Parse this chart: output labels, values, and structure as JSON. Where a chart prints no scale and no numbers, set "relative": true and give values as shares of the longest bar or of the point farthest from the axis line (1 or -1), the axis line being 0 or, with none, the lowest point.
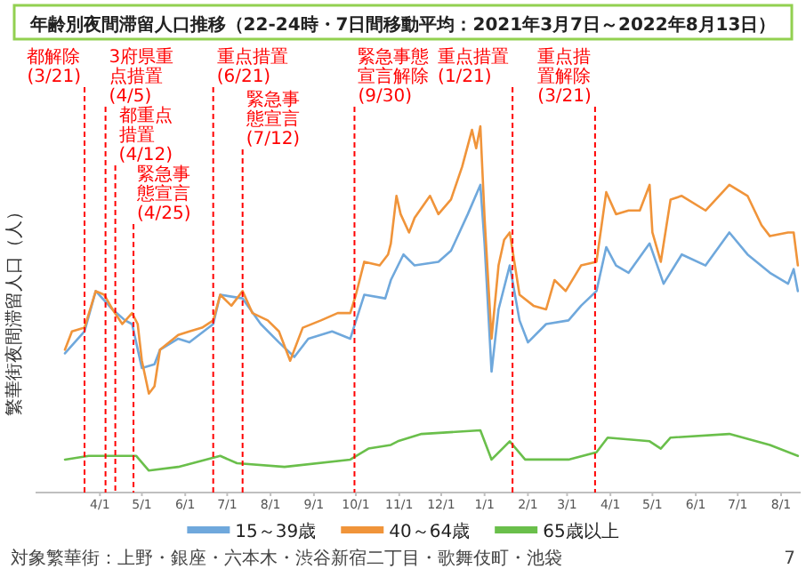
{
  "chart_data": {
    "type": "line",
    "title": "年齢別夜間滞留人口推移（22-24時・7日間移動平均：2021年3月7日～2022年8月13日）",
    "ylabel": "繁華街夜間滞留人口（人）",
    "relative": true,
    "xlim": [
      "2021-02-14",
      "2022-08-15"
    ],
    "tick_labels": "x",
    "xticks": [
      {
        "value": "2021-04-01",
        "label": "4/1"
      },
      {
        "value": "2021-05-01",
        "label": "5/1"
      },
      {
        "value": "2021-06-01",
        "label": "6/1"
      },
      {
        "value": "2021-07-01",
        "label": "7/1"
      },
      {
        "value": "2021-08-01",
        "label": "8/1"
      },
      {
        "value": "2021-09-01",
        "label": "9/1"
      },
      {
        "value": "2021-10-01",
        "label": "10/1"
      },
      {
        "value": "2021-11-01",
        "label": "11/1"
      },
      {
        "value": "2021-12-01",
        "label": "12/1"
      },
      {
        "value": "2022-01-01",
        "label": "1/1"
      },
      {
        "value": "2022-02-01",
        "label": "2/1"
      },
      {
        "value": "2022-03-01",
        "label": "3/1"
      },
      {
        "value": "2022-04-01",
        "label": "4/1"
      },
      {
        "value": "2022-05-01",
        "label": "5/1"
      },
      {
        "value": "2022-06-01",
        "label": "6/1"
      },
      {
        "value": "2022-07-01",
        "label": "7/1"
      },
      {
        "value": "2022-08-01",
        "label": "8/1"
      }
    ],
    "legend": "bottom",
    "annotations": [
      "対象繁華街：上野・銀座・六本木・渋谷新宿二丁目・歌舞伎町・池袋",
      "7"
    ],
    "ref_lines": [
      {
        "axis": "x",
        "value": "2021-03-21",
        "label": "都解除\n(3/21)",
        "color": "#ff0000",
        "line_style": "dashed"
      },
      {
        "axis": "x",
        "value": "2021-04-05",
        "label": "3府県重点措置\n(4/5)",
        "color": "#ff0000",
        "line_style": "dashed"
      },
      {
        "axis": "x",
        "value": "2021-04-12",
        "label": "都重点措置\n(4/12)",
        "color": "#ff0000",
        "line_style": "dashed"
      },
      {
        "axis": "x",
        "value": "2021-04-25",
        "label": "緊急事態宣言\n(4/25)",
        "color": "#ff0000",
        "line_style": "dashed"
      },
      {
        "axis": "x",
        "value": "2021-06-21",
        "label": "重点措置\n(6/21)",
        "color": "#ff0000",
        "line_style": "dashed"
      },
      {
        "axis": "x",
        "value": "2021-07-12",
        "label": "緊急事態宣言\n(7/12)",
        "color": "#ff0000",
        "line_style": "dashed"
      },
      {
        "axis": "x",
        "value": "2021-09-30",
        "label": "緊急事態宣言解除\n(9/30)",
        "color": "#ff0000",
        "line_style": "dashed"
      },
      {
        "axis": "x",
        "value": "2022-01-21",
        "label": "重点措置\n(1/21)",
        "color": "#ff0000",
        "line_style": "dashed"
      },
      {
        "axis": "x",
        "value": "2022-03-21",
        "label": "重点措置解除\n(3/21)",
        "color": "#ff0000",
        "line_style": "dashed"
      }
    ],
    "series": [
      {
        "name": "15～39歳",
        "color": "#6fa8dc",
        "x": [
          "2021-03-07",
          "2021-03-21",
          "2021-03-29",
          "2021-04-10",
          "2021-04-19",
          "2021-04-24",
          "2021-05-01",
          "2021-05-10",
          "2021-05-14",
          "2021-05-27",
          "2021-06-04",
          "2021-06-21",
          "2021-06-26",
          "2021-07-12",
          "2021-07-25",
          "2021-08-07",
          "2021-08-18",
          "2021-08-28",
          "2021-09-14",
          "2021-09-27",
          "2021-10-07",
          "2021-10-22",
          "2021-10-26",
          "2021-11-04",
          "2021-11-12",
          "2021-11-29",
          "2021-12-08",
          "2021-12-20",
          "2021-12-29",
          "2022-01-01",
          "2022-01-06",
          "2022-01-11",
          "2022-01-19",
          "2022-01-26",
          "2022-02-01",
          "2022-02-14",
          "2022-03-02",
          "2022-03-11",
          "2022-03-22",
          "2022-03-29",
          "2022-04-05",
          "2022-04-14",
          "2022-04-29",
          "2022-05-09",
          "2022-05-22",
          "2022-06-08",
          "2022-06-25",
          "2022-07-08",
          "2022-07-24",
          "2022-08-06",
          "2022-08-10",
          "2022-08-13"
        ],
        "values": [
          0.38,
          0.44,
          0.55,
          0.5,
          0.47,
          0.46,
          0.34,
          0.35,
          0.39,
          0.42,
          0.41,
          0.46,
          0.54,
          0.53,
          0.46,
          0.41,
          0.37,
          0.42,
          0.44,
          0.42,
          0.54,
          0.53,
          0.58,
          0.65,
          0.62,
          0.63,
          0.66,
          0.76,
          0.84,
          0.68,
          0.33,
          0.5,
          0.62,
          0.47,
          0.41,
          0.46,
          0.47,
          0.51,
          0.55,
          0.67,
          0.62,
          0.6,
          0.68,
          0.57,
          0.65,
          0.62,
          0.71,
          0.65,
          0.6,
          0.57,
          0.61,
          0.55
        ]
      },
      {
        "name": "40～64歳",
        "color": "#f0943a",
        "x": [
          "2021-03-07",
          "2021-03-12",
          "2021-03-21",
          "2021-03-29",
          "2021-04-04",
          "2021-04-10",
          "2021-04-17",
          "2021-04-24",
          "2021-04-28",
          "2021-05-01",
          "2021-05-06",
          "2021-05-10",
          "2021-05-14",
          "2021-05-27",
          "2021-06-04",
          "2021-06-13",
          "2021-06-21",
          "2021-06-26",
          "2021-07-04",
          "2021-07-12",
          "2021-07-19",
          "2021-07-30",
          "2021-08-07",
          "2021-08-15",
          "2021-08-24",
          "2021-09-06",
          "2021-09-18",
          "2021-09-27",
          "2021-10-01",
          "2021-10-07",
          "2021-10-18",
          "2021-10-24",
          "2021-10-26",
          "2021-10-30",
          "2021-11-02",
          "2021-11-08",
          "2021-11-12",
          "2021-11-23",
          "2021-11-29",
          "2021-12-08",
          "2021-12-16",
          "2021-12-23",
          "2021-12-26",
          "2021-12-29",
          "2022-01-01",
          "2022-01-06",
          "2022-01-11",
          "2022-01-15",
          "2022-01-19",
          "2022-01-26",
          "2022-02-05",
          "2022-02-14",
          "2022-02-20",
          "2022-02-28",
          "2022-03-11",
          "2022-03-22",
          "2022-03-29",
          "2022-04-05",
          "2022-04-14",
          "2022-04-22",
          "2022-04-29",
          "2022-05-01",
          "2022-05-07",
          "2022-05-14",
          "2022-05-22",
          "2022-06-08",
          "2022-06-25",
          "2022-07-08",
          "2022-07-18",
          "2022-07-24",
          "2022-08-06",
          "2022-08-10",
          "2022-08-13"
        ],
        "values": [
          0.39,
          0.44,
          0.45,
          0.55,
          0.54,
          0.5,
          0.46,
          0.49,
          0.46,
          0.36,
          0.27,
          0.29,
          0.39,
          0.43,
          0.44,
          0.45,
          0.47,
          0.54,
          0.51,
          0.55,
          0.49,
          0.47,
          0.44,
          0.36,
          0.45,
          0.47,
          0.49,
          0.49,
          0.54,
          0.63,
          0.62,
          0.65,
          0.68,
          0.81,
          0.76,
          0.71,
          0.75,
          0.81,
          0.76,
          0.8,
          0.89,
          0.99,
          0.94,
          1.0,
          0.75,
          0.42,
          0.62,
          0.69,
          0.71,
          0.54,
          0.51,
          0.5,
          0.58,
          0.55,
          0.62,
          0.63,
          0.82,
          0.76,
          0.77,
          0.77,
          0.84,
          0.71,
          0.63,
          0.8,
          0.81,
          0.77,
          0.84,
          0.81,
          0.73,
          0.7,
          0.71,
          0.71,
          0.62
        ]
      },
      {
        "name": "65歳以上",
        "color": "#6abf4b",
        "x": [
          "2021-03-07",
          "2021-03-24",
          "2021-04-15",
          "2021-04-27",
          "2021-05-06",
          "2021-05-27",
          "2021-06-26",
          "2021-07-08",
          "2021-08-11",
          "2021-09-27",
          "2021-10-10",
          "2021-10-26",
          "2021-10-31",
          "2021-11-17",
          "2021-12-29",
          "2022-01-06",
          "2022-01-19",
          "2022-01-30",
          "2022-03-02",
          "2022-03-22",
          "2022-03-30",
          "2022-04-29",
          "2022-05-07",
          "2022-05-14",
          "2022-06-25",
          "2022-07-24",
          "2022-08-13"
        ],
        "values": [
          0.09,
          0.1,
          0.1,
          0.1,
          0.06,
          0.07,
          0.1,
          0.08,
          0.07,
          0.09,
          0.12,
          0.13,
          0.14,
          0.16,
          0.17,
          0.09,
          0.14,
          0.09,
          0.09,
          0.11,
          0.15,
          0.14,
          0.12,
          0.15,
          0.16,
          0.13,
          0.1
        ]
      }
    ]
  }
}
